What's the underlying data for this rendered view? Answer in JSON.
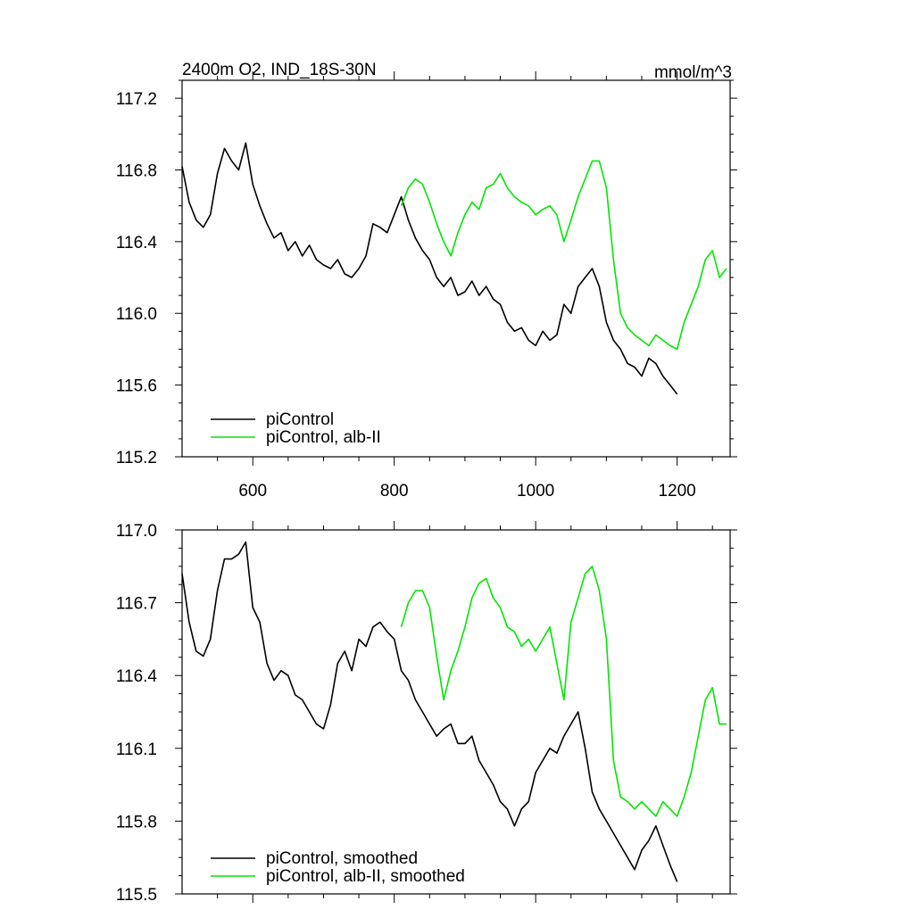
{
  "chart_data": [
    {
      "type": "line",
      "title": "2400m O2, IND_18S-30N",
      "units": "mmol/m^3",
      "xlim": [
        500,
        1275
      ],
      "ylim": [
        115.2,
        117.3
      ],
      "x_ticks": [
        600,
        800,
        1000,
        1200
      ],
      "x_tick_labels": [
        "600",
        "800",
        "1000",
        "1200"
      ],
      "y_ticks": [
        115.2,
        115.6,
        116.0,
        116.4,
        116.8,
        117.2
      ],
      "y_tick_labels": [
        "115.2",
        "115.6",
        "116.0",
        "116.4",
        "116.8",
        "117.2"
      ],
      "grid": false,
      "legend": "bottom-left",
      "series": [
        {
          "name": "piControl",
          "color": "#000000",
          "x": [
            500,
            510,
            520,
            530,
            540,
            550,
            560,
            570,
            580,
            590,
            600,
            610,
            620,
            630,
            640,
            650,
            660,
            670,
            680,
            690,
            700,
            710,
            720,
            730,
            740,
            750,
            760,
            770,
            780,
            790,
            800,
            810,
            820,
            830,
            840,
            850,
            860,
            870,
            880,
            890,
            900,
            910,
            920,
            930,
            940,
            950,
            960,
            970,
            980,
            990,
            1000,
            1010,
            1020,
            1030,
            1040,
            1050,
            1060,
            1070,
            1080,
            1090,
            1100,
            1110,
            1120,
            1130,
            1140,
            1150,
            1160,
            1170,
            1180,
            1190,
            1200
          ],
          "y": [
            116.82,
            116.62,
            116.52,
            116.48,
            116.55,
            116.78,
            116.92,
            116.85,
            116.8,
            116.95,
            116.72,
            116.6,
            116.5,
            116.42,
            116.45,
            116.35,
            116.4,
            116.32,
            116.38,
            116.3,
            116.27,
            116.25,
            116.3,
            116.22,
            116.2,
            116.25,
            116.32,
            116.5,
            116.48,
            116.45,
            116.55,
            116.65,
            116.52,
            116.42,
            116.35,
            116.3,
            116.2,
            116.15,
            116.2,
            116.1,
            116.12,
            116.18,
            116.1,
            116.15,
            116.08,
            116.05,
            115.95,
            115.9,
            115.92,
            115.85,
            115.82,
            115.9,
            115.85,
            115.88,
            116.05,
            116.0,
            116.15,
            116.2,
            116.25,
            116.15,
            115.95,
            115.85,
            115.8,
            115.72,
            115.7,
            115.65,
            115.75,
            115.72,
            115.65,
            115.6,
            115.55
          ]
        },
        {
          "name": "piControl, alb-II",
          "color": "#00e600",
          "x": [
            810,
            820,
            830,
            840,
            850,
            860,
            870,
            880,
            890,
            900,
            910,
            920,
            930,
            940,
            950,
            960,
            970,
            980,
            990,
            1000,
            1010,
            1020,
            1030,
            1040,
            1050,
            1060,
            1070,
            1080,
            1090,
            1100,
            1110,
            1120,
            1130,
            1140,
            1150,
            1160,
            1170,
            1180,
            1190,
            1200,
            1210,
            1220,
            1230,
            1240,
            1250,
            1260,
            1270
          ],
          "y": [
            116.6,
            116.7,
            116.75,
            116.72,
            116.62,
            116.5,
            116.4,
            116.32,
            116.45,
            116.55,
            116.62,
            116.58,
            116.7,
            116.72,
            116.78,
            116.7,
            116.65,
            116.62,
            116.6,
            116.55,
            116.58,
            116.6,
            116.55,
            116.4,
            116.52,
            116.65,
            116.75,
            116.85,
            116.85,
            116.7,
            116.3,
            116.0,
            115.92,
            115.88,
            115.85,
            115.82,
            115.88,
            115.85,
            115.82,
            115.8,
            115.95,
            116.05,
            116.15,
            116.3,
            116.35,
            116.2,
            116.25
          ]
        }
      ],
      "legend_entries": [
        "piControl",
        "piControl, alb-II"
      ]
    },
    {
      "type": "line",
      "title": "",
      "xlim": [
        500,
        1275
      ],
      "ylim": [
        115.5,
        117.0
      ],
      "y_ticks": [
        115.5,
        115.8,
        116.1,
        116.4,
        116.7,
        117.0
      ],
      "y_tick_labels": [
        "115.5",
        "115.8",
        "116.1",
        "116.4",
        "116.7",
        "117.0"
      ],
      "grid": false,
      "legend": "bottom-left",
      "series": [
        {
          "name": "piControl, smoothed",
          "color": "#000000",
          "x": [
            500,
            510,
            520,
            530,
            540,
            550,
            560,
            570,
            580,
            590,
            600,
            610,
            620,
            630,
            640,
            650,
            660,
            670,
            680,
            690,
            700,
            710,
            720,
            730,
            740,
            750,
            760,
            770,
            780,
            790,
            800,
            810,
            820,
            830,
            840,
            850,
            860,
            870,
            880,
            890,
            900,
            910,
            920,
            930,
            940,
            950,
            960,
            970,
            980,
            990,
            1000,
            1010,
            1020,
            1030,
            1040,
            1050,
            1060,
            1070,
            1080,
            1090,
            1100,
            1110,
            1120,
            1130,
            1140,
            1150,
            1160,
            1170,
            1180,
            1190,
            1200
          ],
          "y": [
            116.82,
            116.62,
            116.5,
            116.48,
            116.55,
            116.75,
            116.88,
            116.88,
            116.9,
            116.95,
            116.68,
            116.62,
            116.45,
            116.38,
            116.42,
            116.4,
            116.32,
            116.3,
            116.25,
            116.2,
            116.18,
            116.28,
            116.45,
            116.5,
            116.42,
            116.55,
            116.52,
            116.6,
            116.62,
            116.58,
            116.55,
            116.42,
            116.38,
            116.3,
            116.25,
            116.2,
            116.15,
            116.18,
            116.2,
            116.12,
            116.12,
            116.15,
            116.05,
            116.0,
            115.95,
            115.88,
            115.85,
            115.78,
            115.85,
            115.88,
            116.0,
            116.05,
            116.1,
            116.08,
            116.15,
            116.2,
            116.25,
            116.1,
            115.92,
            115.85,
            115.8,
            115.75,
            115.7,
            115.65,
            115.6,
            115.68,
            115.72,
            115.78,
            115.7,
            115.62,
            115.55
          ]
        },
        {
          "name": "piControl, alb-II, smoothed",
          "color": "#00e600",
          "x": [
            810,
            820,
            830,
            840,
            850,
            860,
            870,
            880,
            890,
            900,
            910,
            920,
            930,
            940,
            950,
            960,
            970,
            980,
            990,
            1000,
            1010,
            1020,
            1030,
            1040,
            1050,
            1060,
            1070,
            1080,
            1090,
            1100,
            1110,
            1120,
            1130,
            1140,
            1150,
            1160,
            1170,
            1180,
            1190,
            1200,
            1210,
            1220,
            1230,
            1240,
            1250,
            1260,
            1270
          ],
          "y": [
            116.6,
            116.7,
            116.75,
            116.75,
            116.68,
            116.48,
            116.3,
            116.42,
            116.5,
            116.6,
            116.72,
            116.78,
            116.8,
            116.72,
            116.68,
            116.6,
            116.58,
            116.52,
            116.55,
            116.5,
            116.55,
            116.6,
            116.45,
            116.3,
            116.62,
            116.72,
            116.82,
            116.85,
            116.75,
            116.55,
            116.05,
            115.9,
            115.88,
            115.85,
            115.88,
            115.85,
            115.82,
            115.88,
            115.85,
            115.82,
            115.9,
            116.0,
            116.15,
            116.3,
            116.35,
            116.2,
            116.2
          ]
        }
      ],
      "legend_entries": [
        "piControl, smoothed",
        "piControl, alb-II, smoothed"
      ]
    }
  ]
}
